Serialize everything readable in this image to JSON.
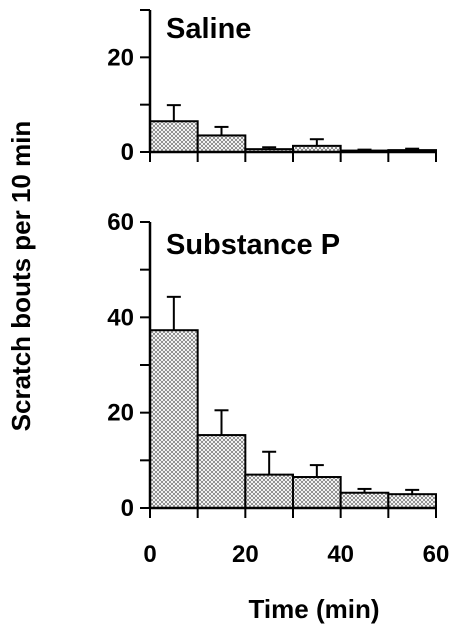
{
  "chart_data": [
    {
      "type": "bar",
      "title": "Saline",
      "x_bins": [
        [
          0,
          10
        ],
        [
          10,
          20
        ],
        [
          20,
          30
        ],
        [
          30,
          40
        ],
        [
          40,
          50
        ],
        [
          50,
          60
        ]
      ],
      "values": [
        6.5,
        3.5,
        0.6,
        1.3,
        0.3,
        0.4
      ],
      "errors": [
        3.4,
        1.8,
        0.4,
        1.4,
        0.2,
        0.3
      ],
      "yticks": [
        0,
        20
      ],
      "ylim": [
        0,
        30
      ],
      "xlim": [
        0,
        60
      ],
      "bar_pattern": "crosshatch"
    },
    {
      "type": "bar",
      "title": "Substance P",
      "x_bins": [
        [
          0,
          10
        ],
        [
          10,
          20
        ],
        [
          20,
          30
        ],
        [
          30,
          40
        ],
        [
          40,
          50
        ],
        [
          50,
          60
        ]
      ],
      "values": [
        37.3,
        15.3,
        7.0,
        6.5,
        3.2,
        2.9
      ],
      "errors": [
        7.0,
        5.2,
        4.8,
        2.5,
        0.8,
        0.9
      ],
      "yticks": [
        0,
        20,
        40,
        60
      ],
      "ylim": [
        0,
        60
      ],
      "xlim": [
        0,
        60
      ],
      "xticks": [
        0,
        20,
        40,
        60
      ],
      "bar_pattern": "crosshatch"
    }
  ],
  "ylabel": "Scratch bouts per 10 min",
  "xlabel": "Time (min)"
}
